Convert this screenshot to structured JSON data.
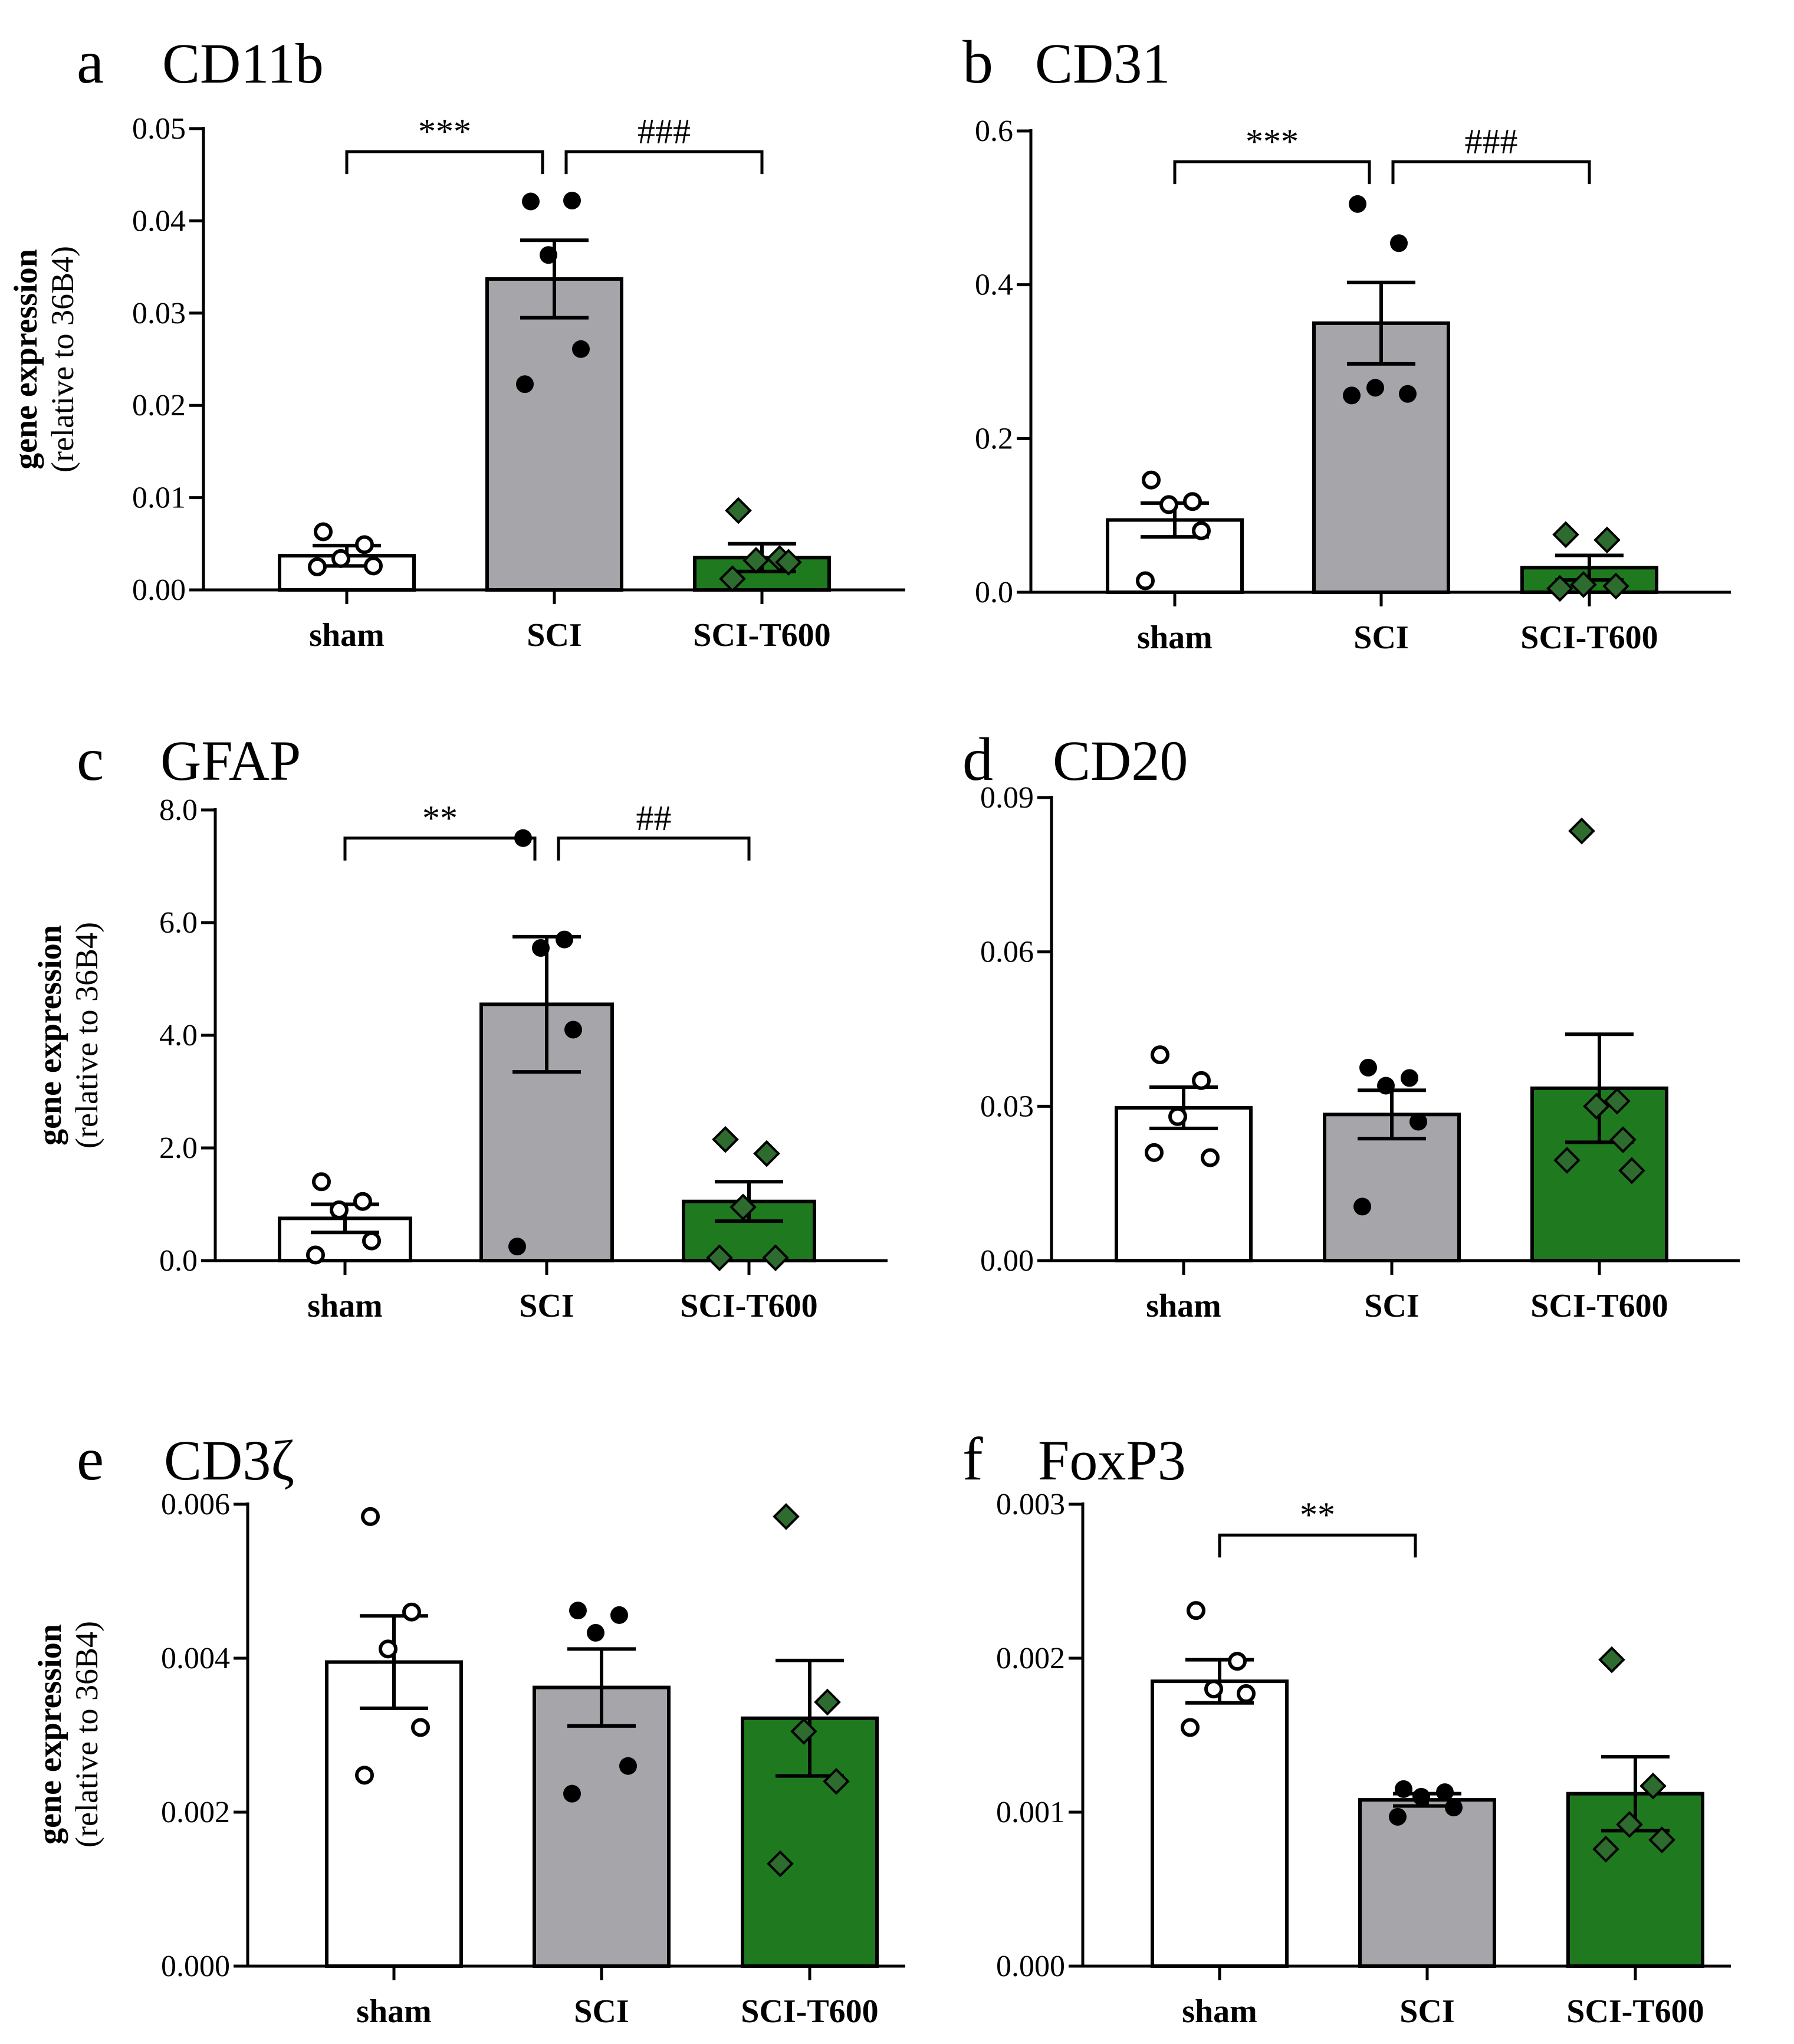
{
  "figure": {
    "y_axis_label_line1": "gene expression",
    "y_axis_label_line2": "(relative to 36B4)"
  },
  "colors": {
    "sham": "#ffffff",
    "SCI": "#a5a5aa",
    "SCI-T600": "#1f7a1f",
    "point_dark": "#000000",
    "point_green": "#2e6b2e"
  },
  "chart_data": [
    {
      "type": "bar",
      "letter": "a",
      "title": "CD11b",
      "categories": [
        "sham",
        "SCI",
        "SCI-T600"
      ],
      "ylim": [
        0,
        0.05
      ],
      "ticks": [
        "0.00",
        "0.01",
        "0.02",
        "0.03",
        "0.04",
        "0.05"
      ],
      "tick_values": [
        0,
        0.01,
        0.02,
        0.03,
        0.04,
        0.05
      ],
      "ylabel_shown": true,
      "means": [
        0.0037,
        0.0337,
        0.0035
      ],
      "sem": [
        0.0011,
        0.0042,
        0.0015
      ],
      "points": [
        [
          0.0063,
          0.0049,
          0.0034,
          0.0026,
          0.0025
        ],
        [
          0.0421,
          0.0422,
          0.0363,
          0.0261,
          0.0223
        ],
        [
          0.0086,
          0.0034,
          0.0032,
          0.003,
          0.0012
        ]
      ],
      "significance": [
        {
          "from": 0,
          "to": 1,
          "label": "***"
        },
        {
          "from": 1,
          "to": 2,
          "label": "###"
        }
      ],
      "bracket_y": 0.0475
    },
    {
      "type": "bar",
      "letter": "b",
      "title": "CD31",
      "categories": [
        "sham",
        "SCI",
        "SCI-T600"
      ],
      "ylim": [
        0,
        0.6
      ],
      "ticks": [
        "0.0",
        "0.2",
        "0.4",
        "0.6"
      ],
      "tick_values": [
        0,
        0.2,
        0.4,
        0.6
      ],
      "ylabel_shown": false,
      "means": [
        0.094,
        0.35,
        0.032
      ],
      "sem": [
        0.022,
        0.053,
        0.016
      ],
      "points": [
        [
          0.146,
          0.118,
          0.114,
          0.08,
          0.015
        ],
        [
          0.505,
          0.454,
          0.266,
          0.258,
          0.256
        ],
        [
          0.075,
          0.068,
          0.01,
          0.008,
          0.005
        ]
      ],
      "significance": [
        {
          "from": 0,
          "to": 1,
          "label": "***"
        },
        {
          "from": 1,
          "to": 2,
          "label": "###"
        }
      ],
      "bracket_y": 0.56
    },
    {
      "type": "bar",
      "letter": "c",
      "title": "GFAP",
      "categories": [
        "sham",
        "SCI",
        "SCI-T600"
      ],
      "ylim": [
        0,
        8.0
      ],
      "ticks": [
        "0.0",
        "2.0",
        "4.0",
        "6.0",
        "8.0"
      ],
      "tick_values": [
        0,
        2,
        4,
        6,
        8
      ],
      "ylabel_shown": true,
      "means": [
        0.75,
        4.55,
        1.05
      ],
      "sem": [
        0.25,
        1.2,
        0.35
      ],
      "points": [
        [
          1.4,
          1.05,
          0.9,
          0.35,
          0.1
        ],
        [
          7.5,
          5.7,
          5.55,
          4.1,
          0.25
        ],
        [
          2.15,
          1.9,
          0.95,
          0.05,
          0.05
        ]
      ],
      "significance": [
        {
          "from": 0,
          "to": 1,
          "label": "**"
        },
        {
          "from": 1,
          "to": 2,
          "label": "##"
        }
      ],
      "bracket_y": 7.5
    },
    {
      "type": "bar",
      "letter": "d",
      "title": "CD20",
      "categories": [
        "sham",
        "SCI",
        "SCI-T600"
      ],
      "ylim": [
        0,
        0.09
      ],
      "ticks": [
        "0.00",
        "0.03",
        "0.06",
        "0.09"
      ],
      "tick_values": [
        0,
        0.03,
        0.06,
        0.09
      ],
      "ylabel_shown": false,
      "means": [
        0.0297,
        0.0284,
        0.0335
      ],
      "sem": [
        0.004,
        0.0047,
        0.0105
      ],
      "points": [
        [
          0.04,
          0.035,
          0.028,
          0.02,
          0.021
        ],
        [
          0.0375,
          0.0355,
          0.034,
          0.027,
          0.0105
        ],
        [
          0.0835,
          0.031,
          0.03,
          0.0235,
          0.0195,
          0.0175
        ]
      ],
      "significance": [],
      "bracket_y": null
    },
    {
      "type": "bar",
      "letter": "e",
      "title": "CD3ζ",
      "categories": [
        "sham",
        "SCI",
        "SCI-T600"
      ],
      "ylim": [
        0,
        0.006
      ],
      "ticks": [
        "0.000",
        "0.002",
        "0.004",
        "0.006"
      ],
      "tick_values": [
        0,
        0.002,
        0.004,
        0.006
      ],
      "ylabel_shown": true,
      "means": [
        0.00395,
        0.00362,
        0.00322
      ],
      "sem": [
        0.0006,
        0.0005,
        0.00075
      ],
      "points": [
        [
          0.00584,
          0.0046,
          0.00412,
          0.0031,
          0.00248
        ],
        [
          0.00462,
          0.00456,
          0.00433,
          0.0026,
          0.00224
        ],
        [
          0.00584,
          0.00343,
          0.00305,
          0.0024,
          0.00133
        ]
      ],
      "significance": [],
      "bracket_y": null
    },
    {
      "type": "bar",
      "letter": "f",
      "title": "FoxP3",
      "categories": [
        "sham",
        "SCI",
        "SCI-T600"
      ],
      "ylim": [
        0,
        0.003
      ],
      "ticks": [
        "0.000",
        "0.001",
        "0.002",
        "0.003"
      ],
      "tick_values": [
        0,
        0.001,
        0.002,
        0.003
      ],
      "ylabel_shown": false,
      "means": [
        0.00185,
        0.00108,
        0.00112
      ],
      "sem": [
        0.00014,
        4e-05,
        0.00024
      ],
      "points": [
        [
          0.00231,
          0.00198,
          0.0018,
          0.00177,
          0.00155
        ],
        [
          0.00115,
          0.00113,
          0.0011,
          0.00103,
          0.00097
        ],
        [
          0.00199,
          0.00117,
          0.00092,
          0.00082,
          0.00076
        ]
      ],
      "significance": [
        {
          "from": 0,
          "to": 1,
          "label": "**"
        }
      ],
      "bracket_y": 0.0028
    }
  ]
}
